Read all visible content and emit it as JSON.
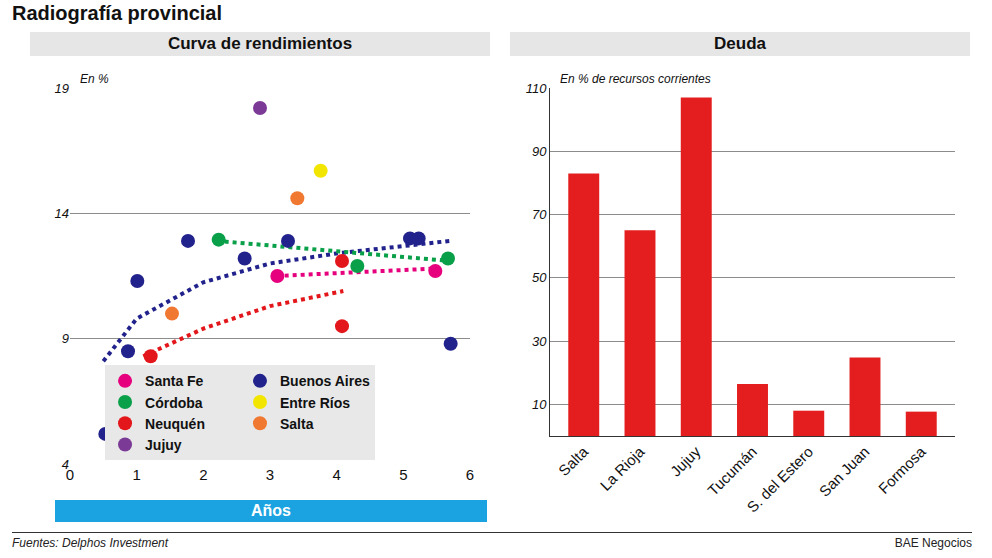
{
  "header": {
    "title": "Radiografía provincial"
  },
  "chart_data": [
    {
      "type": "scatter",
      "title": "Curva de rendimientos",
      "y_label": "En %",
      "x_label": "Años",
      "xlim": [
        0,
        6
      ],
      "xticks": [
        0,
        1,
        2,
        3,
        4,
        5,
        6
      ],
      "ylim": [
        4,
        19
      ],
      "yticks": [
        4,
        9,
        14,
        19
      ],
      "grid": true,
      "legend": "bottom",
      "marker": "circle",
      "series": [
        {
          "name": "Santa Fe",
          "color": "#e6007e",
          "x": [
            3.11,
            5.48
          ],
          "values": [
            11.5,
            11.7
          ],
          "trend": {
            "x": [
              3.1,
              5.5
            ],
            "values": [
              11.5,
              11.8
            ],
            "line_style": "dotted"
          }
        },
        {
          "name": "Buenos Aires",
          "color": "#22228c",
          "x": [
            0.53,
            0.87,
            1.01,
            1.77,
            2.62,
            3.27,
            5.1,
            5.23,
            5.71
          ],
          "values": [
            5.2,
            8.5,
            11.3,
            12.9,
            12.2,
            12.9,
            13.0,
            13.0,
            8.8
          ],
          "trend": {
            "x": [
              0.5,
              1,
              2,
              3,
              4,
              5,
              5.7
            ],
            "values": [
              8.1,
              9.8,
              11.25,
              12.0,
              12.4,
              12.7,
              12.9
            ],
            "line_style": "dotted"
          }
        },
        {
          "name": "Córdoba",
          "color": "#0aa04a",
          "x": [
            2.23,
            4.31,
            5.67
          ],
          "values": [
            12.95,
            11.9,
            12.2
          ],
          "trend": {
            "x": [
              2.2,
              5.7
            ],
            "values": [
              12.9,
              12.1
            ],
            "line_style": "dotted"
          }
        },
        {
          "name": "Entre Ríos",
          "color": "#f2e600",
          "x": [
            3.76
          ],
          "values": [
            15.7
          ]
        },
        {
          "name": "Neuquén",
          "color": "#e3171b",
          "x": [
            1.21,
            4.08,
            4.08
          ],
          "values": [
            8.3,
            12.1,
            9.5
          ],
          "trend": {
            "x": [
              1.1,
              2,
              3,
              4.1
            ],
            "values": [
              8.3,
              9.4,
              10.3,
              10.9
            ],
            "line_style": "dotted"
          }
        },
        {
          "name": "Salta",
          "color": "#f07830",
          "x": [
            1.53,
            3.41
          ],
          "values": [
            10.0,
            14.6
          ]
        },
        {
          "name": "Jujuy",
          "color": "#7a3a96",
          "x": [
            2.85
          ],
          "values": [
            18.2
          ]
        }
      ]
    },
    {
      "type": "bar",
      "title": "Deuda",
      "y_label": "En % de recursos corrientes",
      "categories": [
        "Salta",
        "La Rioja",
        "Jujuy",
        "Tucumán",
        "S. del Estero",
        "San Juan",
        "Formosa"
      ],
      "values": [
        83,
        65,
        107,
        16.4,
        8,
        24.8,
        7.7
      ],
      "color": "#e41e1e",
      "ylim": [
        0,
        110
      ],
      "yticks": [
        10,
        30,
        50,
        70,
        90,
        110
      ],
      "grid": true
    }
  ],
  "footer": {
    "source": "Fuentes: Delphos Investment",
    "credit": "BAE Negocios"
  }
}
